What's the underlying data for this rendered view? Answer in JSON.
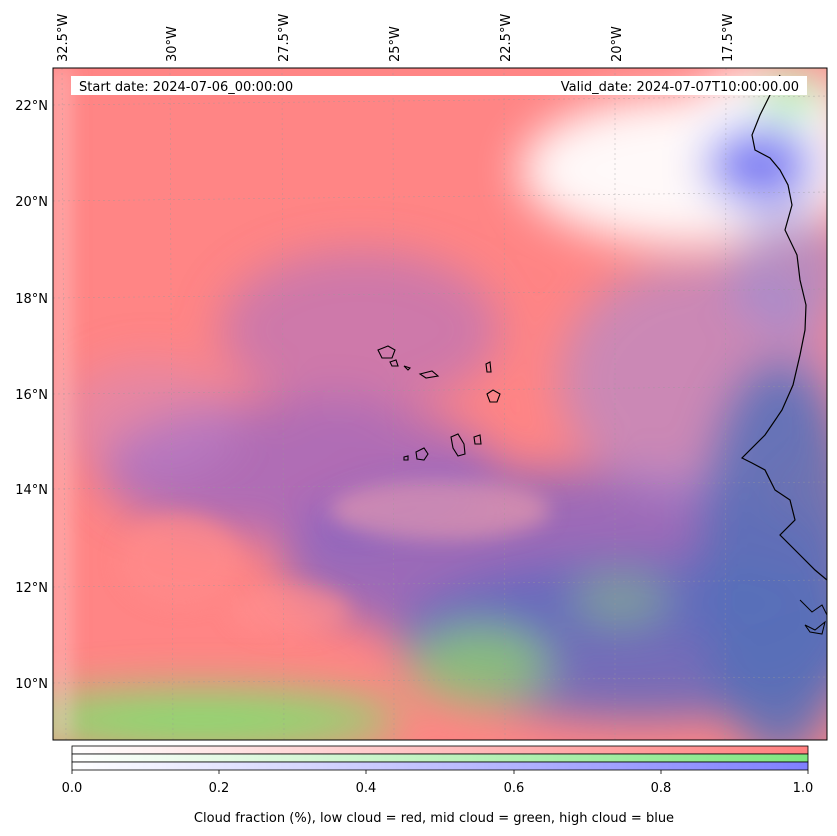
{
  "map": {
    "start_date_label": "Start date: 2024-07-06_00:00:00",
    "valid_date_label": "Valid_date: 2024-07-07T10:00:00.00",
    "lon_labels": [
      "32.5°W",
      "30°W",
      "27.5°W",
      "25°W",
      "22.5°W",
      "20°W",
      "17.5°W"
    ],
    "lat_labels": [
      "22°N",
      "20°N",
      "18°N",
      "16°N",
      "14°N",
      "12°N",
      "10°N"
    ],
    "colors": {
      "low_cloud": "#ff7f7f",
      "mid_cloud": "#7fe67f",
      "high_cloud": "#7f7fff",
      "coastline": "#000000"
    }
  },
  "colorbar": {
    "ticks": [
      "0.0",
      "0.2",
      "0.4",
      "0.6",
      "0.8",
      "1.0"
    ],
    "label": "Cloud fraction (%), low cloud = red, mid cloud = green, high cloud = blue"
  }
}
